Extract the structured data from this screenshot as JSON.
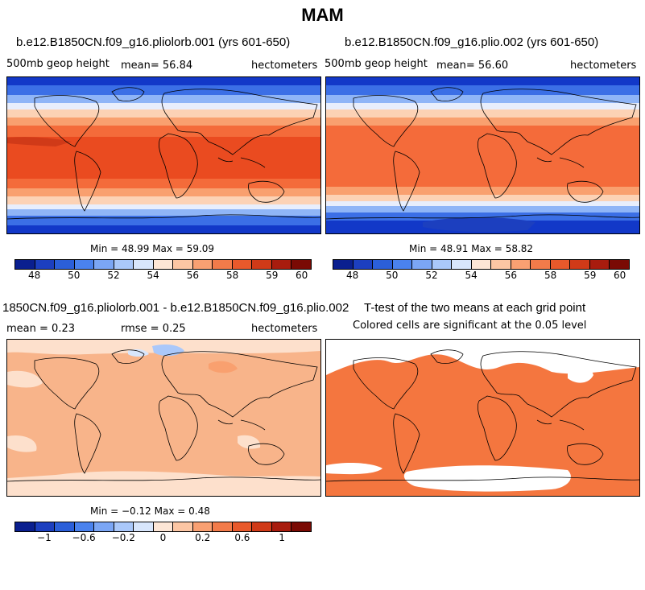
{
  "title": "MAM",
  "panels": {
    "p1": {
      "title": "b.e12.B1850CN.f09_g16.pliolorb.001 (yrs 601-650)",
      "variable": "500mb geop height",
      "mean_label": "mean=",
      "mean_value": "56.84",
      "units": "hectometers",
      "min_label": "Min =",
      "min_value": "48.99",
      "max_label": "Max =",
      "max_value": "59.09"
    },
    "p2": {
      "title": "b.e12.B1850CN.f09_g16.plio.002 (yrs 601-650)",
      "variable": "500mb geop height",
      "mean_label": "mean=",
      "mean_value": "56.60",
      "units": "hectometers",
      "min_label": "Min =",
      "min_value": "48.91",
      "max_label": "Max =",
      "max_value": "58.82"
    },
    "p3": {
      "title": "1850CN.f09_g16.pliolorb.001 - b.e12.B1850CN.f09_g16.plio.002",
      "mean_label": "mean =",
      "mean_value": "0.23",
      "rmse_label": "rmse =",
      "rmse_value": "0.25",
      "units": "hectometers",
      "min_label": "Min =",
      "min_value": "−0.12",
      "max_label": "Max =",
      "max_value": "0.48"
    },
    "p4": {
      "title": "T-test of the two means at each grid point",
      "subtitle": "Colored cells are significant at the 0.05 level"
    }
  },
  "colorbars": {
    "abs_ticks": [
      "48",
      "50",
      "52",
      "54",
      "56",
      "58",
      "59",
      "60"
    ],
    "diff_ticks": [
      "−1",
      "−0.6",
      "−0.2",
      "0",
      "0.2",
      "0.6",
      "1"
    ],
    "colors": [
      "#0a1f8f",
      "#1c3fbf",
      "#2b5fd9",
      "#4a82ee",
      "#7ba6f5",
      "#aac8fa",
      "#d8e6fc",
      "#fde6d6",
      "#fcc6a4",
      "#f9a072",
      "#f27b4a",
      "#e8592b",
      "#d03a18",
      "#a81c0e",
      "#7a0a04"
    ]
  },
  "map_colors": {
    "deep_blue": "#1238c8",
    "mid_blue": "#3b6fe6",
    "light_blue": "#8fb5f7",
    "pale": "#e8eefc",
    "peach": "#fcd2b5",
    "light_orange": "#f9a06f",
    "orange": "#f46b3a",
    "red_orange": "#ea4b20",
    "diff_main": "#f8b48a",
    "diff_light": "#fde0cc",
    "sig": "#f4763f"
  }
}
